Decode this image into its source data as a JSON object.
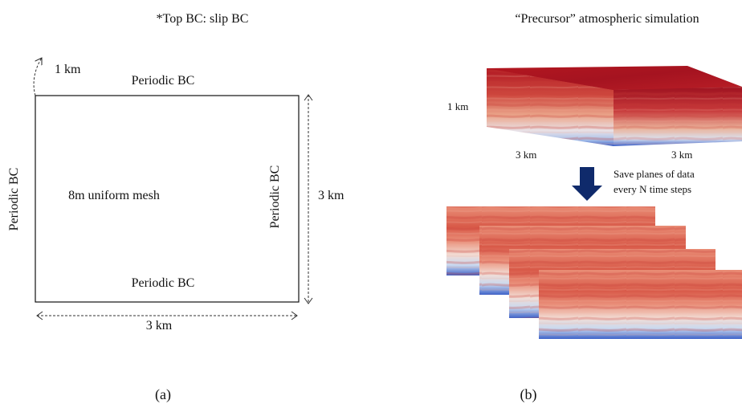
{
  "panel_a": {
    "top_note": "*Top BC: slip BC",
    "height_label": "1 km",
    "bc_top": "Periodic BC",
    "bc_bottom": "Periodic BC",
    "bc_left": "Periodic BC",
    "bc_right": "Periodic BC",
    "mesh_label": "8m uniform mesh",
    "width_label": "3 km",
    "depth_label": "3 km",
    "caption": "(a)"
  },
  "panel_b": {
    "title": "“Precursor” atmospheric simulation",
    "height_label": "1 km",
    "x_label": "3 km",
    "y_label": "3 km",
    "save_line1": "Save planes of data",
    "save_line2": "every N time steps",
    "caption": "(b)"
  },
  "colors": {
    "warm_dark": "#a3121f",
    "warm_mid": "#c8393b",
    "salmon": "#e88f79",
    "light": "#f3e9e4",
    "cool_light": "#c7d8ef",
    "cool_dark": "#2b4fb8",
    "arrow": "#0f2a6b"
  }
}
